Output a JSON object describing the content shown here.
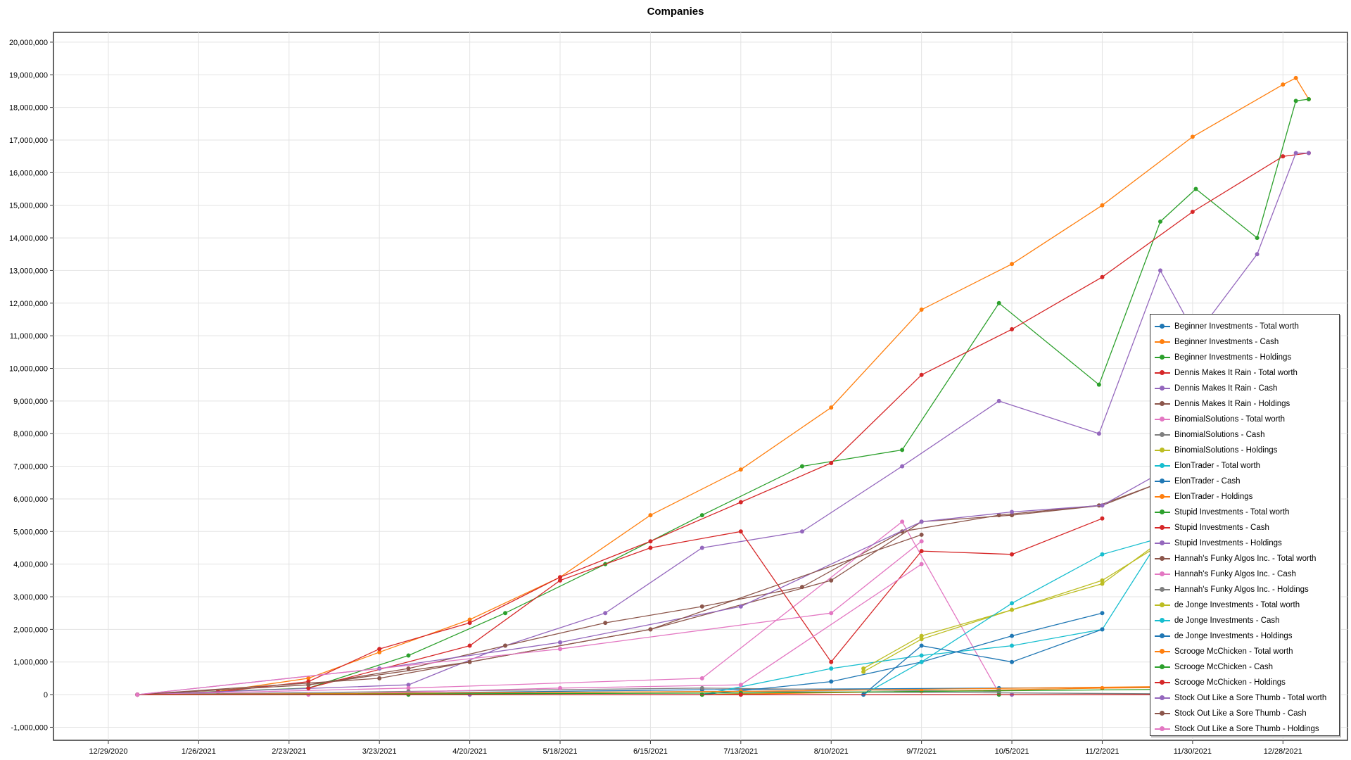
{
  "chart_data": {
    "type": "line",
    "title": "Companies",
    "xlabel": "",
    "ylabel": "",
    "x_ticks": [
      "12/29/2020",
      "1/26/2021",
      "2/23/2021",
      "3/23/2021",
      "4/20/2021",
      "5/18/2021",
      "6/15/2021",
      "7/13/2021",
      "8/10/2021",
      "9/7/2021",
      "10/5/2021",
      "11/2/2021",
      "11/30/2021",
      "12/28/2021"
    ],
    "y_ticks": [
      "20,000,000",
      "19,000,000",
      "18,000,000",
      "17,000,000",
      "16,000,000",
      "15,000,000",
      "14,000,000",
      "13,000,000",
      "12,000,000",
      "11,000,000",
      "10,000,000",
      "9,000,000",
      "8,000,000",
      "7,000,000",
      "6,000,000",
      "5,000,000",
      "4,000,000",
      "3,000,000",
      "2,000,000",
      "1,000,000",
      "0",
      "-1,000,000"
    ],
    "ylim": [
      -1400000,
      20300000
    ],
    "xlim": [
      "2020-12-12",
      "2022-01-17"
    ],
    "grid": true,
    "legend_position": "bottom-right",
    "series": [
      {
        "name": "Beginner Investments - Total worth",
        "color": "#1f77b4",
        "x": [
          "2021-01-07",
          "2021-04-01",
          "2021-07-01",
          "2021-10-01",
          "2022-01-05"
        ],
        "y": [
          0,
          50000,
          150000,
          200000,
          250000
        ]
      },
      {
        "name": "Beginner Investments - Cash",
        "color": "#ff7f0e",
        "x": [
          "2021-01-07",
          "2021-02-01",
          "2021-03-01",
          "2021-03-23",
          "2021-04-20",
          "2021-05-18",
          "2021-06-15",
          "2021-07-13",
          "2021-08-10",
          "2021-09-07",
          "2021-10-05",
          "2021-11-02",
          "2021-11-30",
          "2021-12-28",
          "2022-01-01",
          "2022-01-05"
        ],
        "y": [
          0,
          100000,
          500000,
          1300000,
          2300000,
          3600000,
          5500000,
          6900000,
          8800000,
          11800000,
          13200000,
          15000000,
          17100000,
          18700000,
          18900000,
          18250000
        ]
      },
      {
        "name": "Beginner Investments - Holdings",
        "color": "#2ca02c",
        "x": [
          "2021-01-07",
          "2021-03-01",
          "2021-04-01",
          "2021-05-01",
          "2021-06-01",
          "2021-07-01",
          "2021-08-01",
          "2021-09-01",
          "2021-10-01",
          "2021-11-01",
          "2021-11-20",
          "2021-12-01",
          "2021-12-20",
          "2022-01-01",
          "2022-01-05"
        ],
        "y": [
          0,
          200000,
          1200000,
          2500000,
          4000000,
          5500000,
          7000000,
          7500000,
          12000000,
          9500000,
          14500000,
          15500000,
          14000000,
          18200000,
          18250000
        ]
      },
      {
        "name": "Dennis Makes It Rain - Total worth",
        "color": "#d62728",
        "x": [
          "2021-01-07",
          "2021-02-01",
          "2021-03-01",
          "2021-03-23",
          "2021-04-20",
          "2021-05-18",
          "2021-06-15",
          "2021-07-13",
          "2021-08-10",
          "2021-09-07",
          "2021-10-05",
          "2021-11-02",
          "2021-11-30",
          "2021-12-28",
          "2022-01-05"
        ],
        "y": [
          0,
          80000,
          400000,
          1400000,
          2200000,
          3600000,
          4700000,
          5900000,
          7100000,
          9800000,
          11200000,
          12800000,
          14800000,
          16500000,
          16600000
        ]
      },
      {
        "name": "Dennis Makes It Rain - Cash",
        "color": "#9467bd",
        "x": [
          "2021-01-07",
          "2021-04-01",
          "2021-05-01",
          "2021-06-01",
          "2021-07-01",
          "2021-08-01",
          "2021-09-01",
          "2021-10-01",
          "2021-11-01",
          "2021-11-20",
          "2021-12-01",
          "2021-12-20",
          "2022-01-01",
          "2022-01-05"
        ],
        "y": [
          0,
          300000,
          1500000,
          2500000,
          4500000,
          5000000,
          7000000,
          9000000,
          8000000,
          13000000,
          11000000,
          13500000,
          16600000,
          16600000
        ]
      },
      {
        "name": "Dennis Makes It Rain - Holdings",
        "color": "#8c564b",
        "x": [
          "2021-01-07",
          "2021-03-01",
          "2021-04-01",
          "2021-05-01",
          "2021-06-01",
          "2021-07-01",
          "2021-08-01",
          "2021-09-01",
          "2021-10-01",
          "2021-11-01",
          "2021-11-20"
        ],
        "y": [
          0,
          300000,
          800000,
          1500000,
          2200000,
          2700000,
          3300000,
          5000000,
          5500000,
          5800000,
          6500000
        ]
      },
      {
        "name": "BinomialSolutions - Total worth",
        "color": "#e377c2",
        "x": [
          "2021-01-07",
          "2021-04-01",
          "2021-07-01",
          "2021-09-01",
          "2021-10-01"
        ],
        "y": [
          0,
          200000,
          500000,
          5300000,
          50000
        ]
      },
      {
        "name": "BinomialSolutions - Cash",
        "color": "#7f7f7f",
        "x": [
          "2021-01-07",
          "2021-04-01",
          "2021-07-01",
          "2021-10-01"
        ],
        "y": [
          0,
          100000,
          200000,
          100000
        ]
      },
      {
        "name": "BinomialSolutions - Holdings",
        "color": "#bcbd22",
        "x": [
          "2021-08-20",
          "2021-09-07",
          "2021-10-05",
          "2021-11-02",
          "2021-11-20"
        ],
        "y": [
          700000,
          1700000,
          2600000,
          3400000,
          4700000
        ]
      },
      {
        "name": "ElonTrader - Total worth",
        "color": "#17becf",
        "x": [
          "2021-07-01",
          "2021-08-10",
          "2021-09-07",
          "2021-10-05",
          "2021-11-02",
          "2021-11-20"
        ],
        "y": [
          0,
          800000,
          1200000,
          1500000,
          2000000,
          4800000
        ]
      },
      {
        "name": "ElonTrader - Cash",
        "color": "#1f77b4",
        "x": [
          "2021-07-01",
          "2021-08-10",
          "2021-09-07",
          "2021-10-05",
          "2021-11-02"
        ],
        "y": [
          0,
          400000,
          1000000,
          1800000,
          2500000
        ]
      },
      {
        "name": "ElonTrader - Holdings",
        "color": "#ff7f0e",
        "x": [
          "2021-07-01",
          "2021-09-07",
          "2021-11-02",
          "2022-01-05"
        ],
        "y": [
          0,
          100000,
          200000,
          250000
        ]
      },
      {
        "name": "Stupid Investments - Total worth",
        "color": "#2ca02c",
        "x": [
          "2021-01-07",
          "2021-04-01",
          "2021-07-01",
          "2021-10-01",
          "2022-01-05"
        ],
        "y": [
          0,
          0,
          0,
          0,
          0
        ]
      },
      {
        "name": "Stupid Investments - Cash",
        "color": "#d62728",
        "x": [
          "2021-03-01",
          "2021-04-20",
          "2021-05-18",
          "2021-06-15",
          "2021-07-13",
          "2021-08-10",
          "2021-09-07",
          "2021-10-05",
          "2021-11-02"
        ],
        "y": [
          200000,
          1500000,
          3500000,
          4500000,
          5000000,
          1000000,
          4400000,
          4300000,
          5400000
        ]
      },
      {
        "name": "Stupid Investments - Holdings",
        "color": "#9467bd",
        "x": [
          "2021-01-07",
          "2021-04-20",
          "2021-07-13",
          "2021-10-05",
          "2022-01-05"
        ],
        "y": [
          0,
          0,
          0,
          0,
          0
        ]
      },
      {
        "name": "Hannah's Funky Algos Inc. - Total worth",
        "color": "#8c564b",
        "x": [
          "2021-03-01",
          "2021-04-20",
          "2021-06-15",
          "2021-08-10",
          "2021-09-07",
          "2021-10-05",
          "2021-11-02",
          "2021-11-20"
        ],
        "y": [
          300000,
          1000000,
          2000000,
          3500000,
          5300000,
          5500000,
          5800000,
          6500000
        ]
      },
      {
        "name": "Hannah's Funky Algos Inc. - Cash",
        "color": "#e377c2",
        "x": [
          "2021-03-01",
          "2021-05-18",
          "2021-07-13",
          "2021-09-07"
        ],
        "y": [
          0,
          200000,
          300000,
          4000000
        ]
      },
      {
        "name": "Hannah's Funky Algos Inc. - Holdings",
        "color": "#7f7f7f",
        "x": [
          "2021-01-07",
          "2021-07-13",
          "2022-01-05"
        ],
        "y": [
          0,
          100000,
          0
        ]
      },
      {
        "name": "de Jonge Investments - Total worth",
        "color": "#bcbd22",
        "x": [
          "2021-08-20",
          "2021-09-07",
          "2021-10-05",
          "2021-11-02",
          "2021-11-20"
        ],
        "y": [
          800000,
          1800000,
          2600000,
          3500000,
          4600000
        ]
      },
      {
        "name": "de Jonge Investments - Cash",
        "color": "#17becf",
        "x": [
          "2021-08-20",
          "2021-09-07",
          "2021-10-05",
          "2021-11-02",
          "2021-11-20"
        ],
        "y": [
          0,
          1000000,
          2800000,
          4300000,
          4800000
        ]
      },
      {
        "name": "de Jonge Investments - Holdings",
        "color": "#1f77b4",
        "x": [
          "2021-08-20",
          "2021-09-07",
          "2021-10-05",
          "2021-11-02"
        ],
        "y": [
          0,
          1500000,
          1000000,
          2000000
        ]
      },
      {
        "name": "Scrooge McChicken - Total worth",
        "color": "#ff7f0e",
        "x": [
          "2021-01-07",
          "2021-07-13",
          "2022-01-05"
        ],
        "y": [
          0,
          100000,
          300000
        ]
      },
      {
        "name": "Scrooge McChicken - Cash",
        "color": "#2ca02c",
        "x": [
          "2021-01-07",
          "2021-07-13",
          "2022-01-05"
        ],
        "y": [
          0,
          50000,
          200000
        ]
      },
      {
        "name": "Scrooge McChicken - Holdings",
        "color": "#d62728",
        "x": [
          "2021-01-07",
          "2021-07-13",
          "2022-01-05"
        ],
        "y": [
          0,
          0,
          0
        ]
      },
      {
        "name": "Stock Out Like a Sore Thumb - Total worth",
        "color": "#9467bd",
        "x": [
          "2021-01-07",
          "2021-03-23",
          "2021-05-18",
          "2021-07-13",
          "2021-09-07",
          "2021-10-05",
          "2021-11-02",
          "2021-11-20"
        ],
        "y": [
          0,
          800000,
          1600000,
          2700000,
          5300000,
          5600000,
          5800000,
          6800000
        ]
      },
      {
        "name": "Stock Out Like a Sore Thumb - Cash",
        "color": "#8c564b",
        "x": [
          "2021-01-07",
          "2021-03-23",
          "2021-06-15",
          "2021-09-07"
        ],
        "y": [
          0,
          500000,
          2000000,
          4900000
        ]
      },
      {
        "name": "Stock Out Like a Sore Thumb - Holdings",
        "color": "#e377c2",
        "x": [
          "2021-01-07",
          "2021-05-18",
          "2021-08-10",
          "2021-09-07"
        ],
        "y": [
          0,
          1400000,
          2500000,
          4700000
        ]
      }
    ]
  }
}
